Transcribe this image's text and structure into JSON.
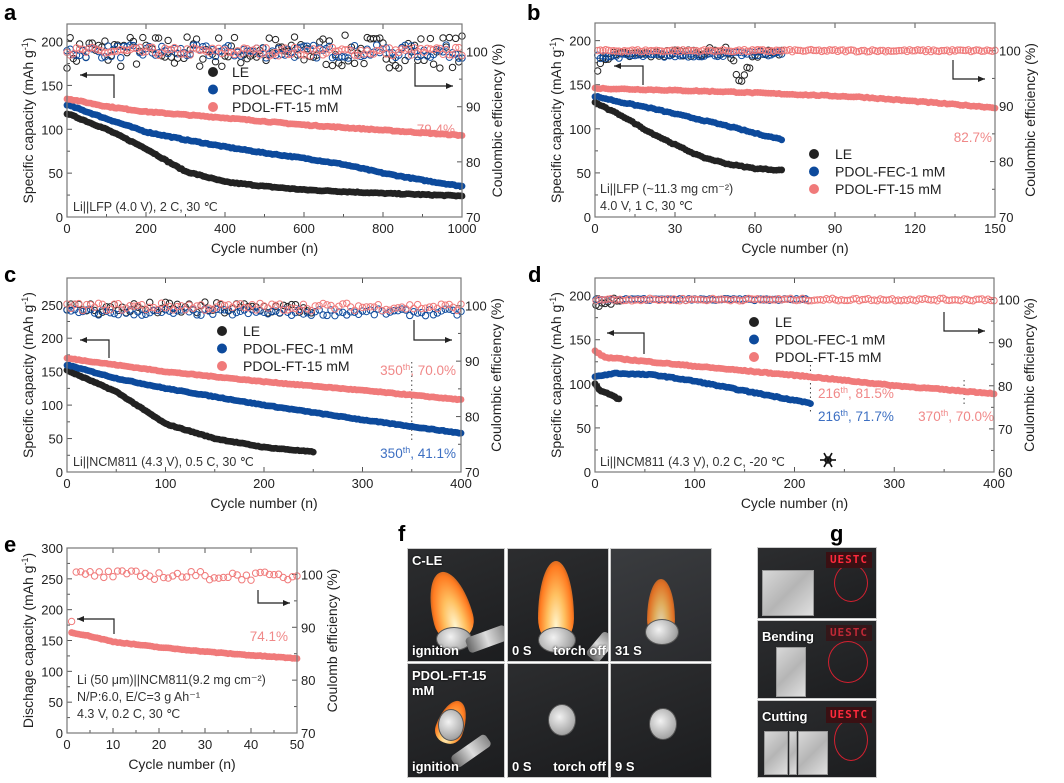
{
  "legend_names": [
    "LE",
    "PDOL-FEC-1 mM",
    "PDOL-FT-15 mM"
  ],
  "colors": {
    "LE": "#222222",
    "PDOL-FEC-1 mM": "#0d4a9c",
    "PDOL-FT-15 mM": "#f07a7a",
    "annot_pink": "#f08888",
    "annot_blue": "#3d6fc2"
  },
  "chart_data": [
    {
      "panel": "a",
      "type": "scatter",
      "xlabel": "Cycle number (n)",
      "ylabel_left": {
        "pre": "Specific capacity (mAh g",
        "sup": "-1",
        "post": ")"
      },
      "ylabel_right": "Coulombic efficiency (%)",
      "xlim": [
        0,
        1000
      ],
      "ylim_left": [
        0,
        220
      ],
      "ylim_right": [
        70,
        105
      ],
      "xticks": [
        "0",
        "200",
        "400",
        "600",
        "800",
        "1000"
      ],
      "yticks_left": [
        "0",
        "50",
        "100",
        "150",
        "200"
      ],
      "yticks_right": [
        "70",
        "80",
        "90",
        "100"
      ],
      "legend": "top-center",
      "conditions": [
        "Li||LFP (4.0 V), 2 C, 30 ℃"
      ],
      "annotations": [
        {
          "text": "79.4%",
          "color": "pink"
        }
      ],
      "series": [
        {
          "name": "LE",
          "capacity": [
            [
              0,
              118
            ],
            [
              100,
              100
            ],
            [
              200,
              78
            ],
            [
              260,
              62
            ],
            [
              300,
              52
            ],
            [
              400,
              40
            ],
            [
              500,
              35
            ],
            [
              600,
              31
            ],
            [
              800,
              27
            ],
            [
              1000,
              24
            ]
          ],
          "ce": [
            [
              0,
              100
            ],
            [
              1000,
              100
            ]
          ]
        },
        {
          "name": "PDOL-FEC-1 mM",
          "capacity": [
            [
              0,
              128
            ],
            [
              100,
              112
            ],
            [
              200,
              97
            ],
            [
              300,
              88
            ],
            [
              400,
              80
            ],
            [
              500,
              73
            ],
            [
              600,
              67
            ],
            [
              700,
              60
            ],
            [
              800,
              50
            ],
            [
              900,
              42
            ],
            [
              1000,
              35
            ]
          ],
          "ce": [
            [
              0,
              100
            ],
            [
              1000,
              100
            ]
          ]
        },
        {
          "name": "PDOL-FT-15 mM",
          "capacity": [
            [
              0,
              135
            ],
            [
              100,
              126
            ],
            [
              200,
              120
            ],
            [
              400,
              113
            ],
            [
              600,
              105
            ],
            [
              800,
              99
            ],
            [
              1000,
              93
            ]
          ],
          "ce": [
            [
              0,
              100
            ],
            [
              1000,
              100
            ]
          ]
        }
      ]
    },
    {
      "panel": "b",
      "type": "scatter",
      "xlabel": "Cycle number (n)",
      "ylabel_left": {
        "pre": "Specific capacity (mAh g",
        "sup": "-1",
        "post": ")"
      },
      "ylabel_right": "Coulombic efficiency (%)",
      "xlim": [
        0,
        150
      ],
      "ylim_left": [
        0,
        220
      ],
      "ylim_right": [
        70,
        105
      ],
      "xticks": [
        "0",
        "30",
        "60",
        "90",
        "120",
        "150"
      ],
      "yticks_left": [
        "0",
        "50",
        "100",
        "150",
        "200"
      ],
      "yticks_right": [
        "70",
        "80",
        "90",
        "100"
      ],
      "legend": "bottom-right",
      "conditions": [
        "Li||LFP (~11.3 mg cm⁻²)",
        "4.0 V, 1 C, 30 ℃"
      ],
      "annotations": [
        {
          "text": "82.7%",
          "color": "pink"
        }
      ],
      "series": [
        {
          "name": "LE",
          "capacity": [
            [
              0,
              130
            ],
            [
              5,
              122
            ],
            [
              10,
              115
            ],
            [
              20,
              97
            ],
            [
              30,
              82
            ],
            [
              40,
              68
            ],
            [
              50,
              60
            ],
            [
              60,
              55
            ],
            [
              70,
              53
            ]
          ],
          "ce": [
            [
              1,
              96
            ],
            [
              3,
              99
            ],
            [
              50,
              100
            ],
            [
              52,
              98
            ],
            [
              54,
              94
            ],
            [
              56,
              96
            ],
            [
              58,
              97
            ],
            [
              60,
              99.5
            ],
            [
              70,
              99.5
            ]
          ]
        },
        {
          "name": "PDOL-FEC-1 mM",
          "capacity": [
            [
              0,
              137
            ],
            [
              10,
              130
            ],
            [
              20,
              124
            ],
            [
              30,
              117
            ],
            [
              40,
              110
            ],
            [
              50,
              103
            ],
            [
              60,
              95
            ],
            [
              70,
              88
            ]
          ],
          "ce": [
            [
              1,
              99
            ],
            [
              70,
              99.5
            ]
          ]
        },
        {
          "name": "PDOL-FT-15 mM",
          "capacity": [
            [
              0,
              146
            ],
            [
              50,
              142
            ],
            [
              100,
              136
            ],
            [
              150,
              124
            ]
          ],
          "ce": [
            [
              1,
              100
            ],
            [
              150,
              100
            ]
          ]
        }
      ]
    },
    {
      "panel": "c",
      "type": "scatter",
      "xlabel": "Cycle number (n)",
      "ylabel_left": {
        "pre": "Specific capacity (mAh g",
        "sup": "-1",
        "post": ")"
      },
      "ylabel_right": "Coulombic efficiency (%)",
      "xlim": [
        0,
        400
      ],
      "ylim_left": [
        0,
        290
      ],
      "ylim_right": [
        70,
        105
      ],
      "xticks": [
        "0",
        "100",
        "200",
        "300",
        "400"
      ],
      "yticks_left": [
        "0",
        "50",
        "100",
        "150",
        "200",
        "250"
      ],
      "yticks_right": [
        "70",
        "80",
        "90",
        "100"
      ],
      "legend": "top-center",
      "conditions": [
        "Li||NCM811 (4.3 V), 0.5 C, 30 ℃"
      ],
      "annotations": [
        {
          "n": "350",
          "sup": "th",
          "text": ", 70.0%",
          "color": "pink"
        },
        {
          "n": "350",
          "sup": "th",
          "text": ", 41.1%",
          "color": "blue"
        }
      ],
      "series": [
        {
          "name": "LE",
          "capacity": [
            [
              0,
              152
            ],
            [
              50,
              120
            ],
            [
              100,
              72
            ],
            [
              150,
              50
            ],
            [
              200,
              37
            ],
            [
              250,
              30
            ]
          ],
          "ce": [
            [
              0,
              99.5
            ],
            [
              250,
              99.5
            ]
          ]
        },
        {
          "name": "PDOL-FEC-1 mM",
          "capacity": [
            [
              0,
              160
            ],
            [
              50,
              140
            ],
            [
              100,
              125
            ],
            [
              200,
              100
            ],
            [
              300,
              78
            ],
            [
              400,
              58
            ]
          ],
          "ce": [
            [
              0,
              98.8
            ],
            [
              400,
              98.8
            ]
          ]
        },
        {
          "name": "PDOL-FT-15 mM",
          "capacity": [
            [
              0,
              170
            ],
            [
              100,
              150
            ],
            [
              200,
              135
            ],
            [
              300,
              122
            ],
            [
              400,
              108
            ]
          ],
          "ce": [
            [
              0,
              99.8
            ],
            [
              400,
              99.8
            ]
          ]
        }
      ]
    },
    {
      "panel": "d",
      "type": "scatter",
      "xlabel": "Cycle number (n)",
      "ylabel_left": {
        "pre": "Specific capacity (mAh g",
        "sup": "-1",
        "post": ")"
      },
      "ylabel_right": "Coulombic efficiency (%)",
      "xlim": [
        0,
        400
      ],
      "ylim_left": [
        0,
        220
      ],
      "ylim_right": [
        60,
        105
      ],
      "xticks": [
        "0",
        "100",
        "200",
        "300",
        "400"
      ],
      "yticks_left": [
        "0",
        "50",
        "100",
        "150",
        "200"
      ],
      "yticks_right": [
        "60",
        "70",
        "80",
        "90",
        "100"
      ],
      "legend": "center",
      "conditions": [
        "Li||NCM811 (4.3 V), 0.2 C, -20 ℃"
      ],
      "annotations": [
        {
          "n": "216",
          "sup": "th",
          "text": ", 81.5%",
          "color": "pink"
        },
        {
          "n": "216",
          "sup": "th",
          "text": ", 71.7%",
          "color": "blue"
        },
        {
          "n": "370",
          "sup": "th",
          "text": ", 70.0%",
          "color": "pink"
        }
      ],
      "series": [
        {
          "name": "LE",
          "capacity": [
            [
              0,
              100
            ],
            [
              5,
              92
            ],
            [
              15,
              88
            ],
            [
              25,
              82
            ]
          ],
          "ce": [
            [
              1,
              98
            ],
            [
              25,
              100
            ]
          ]
        },
        {
          "name": "PDOL-FEC-1 mM",
          "capacity": [
            [
              0,
              108
            ],
            [
              20,
              112
            ],
            [
              60,
              110
            ],
            [
              100,
              103
            ],
            [
              150,
              92
            ],
            [
              216,
              78
            ]
          ],
          "ce": [
            [
              1,
              100
            ],
            [
              216,
              100
            ]
          ]
        },
        {
          "name": "PDOL-FT-15 mM",
          "capacity": [
            [
              0,
              137
            ],
            [
              10,
              130
            ],
            [
              100,
              120
            ],
            [
              216,
              108
            ],
            [
              300,
              98
            ],
            [
              400,
              89
            ]
          ],
          "ce": [
            [
              1,
              100
            ],
            [
              400,
              100
            ]
          ]
        }
      ]
    },
    {
      "panel": "e",
      "type": "scatter",
      "xlabel": "Cycle number (n)",
      "ylabel_left": {
        "pre": "Dischage capacity (mAh g",
        "sup": "-1",
        "post": ")"
      },
      "ylabel_right": "Coulomb efficiency (%)",
      "xlim": [
        0,
        50
      ],
      "ylim_left": [
        0,
        300
      ],
      "ylim_right": [
        70,
        105
      ],
      "xticks": [
        "0",
        "10",
        "20",
        "30",
        "40",
        "50"
      ],
      "yticks_left": [
        "0",
        "50",
        "100",
        "150",
        "200",
        "250",
        "300"
      ],
      "yticks_right": [
        "70",
        "80",
        "90",
        "100"
      ],
      "legend": "none",
      "conditions": [
        "Li (50 μm)||NCM811(9.2 mg cm⁻²)",
        "N/P:6.0, E/C=3 g Ah⁻¹",
        "4.3 V, 0.2 C, 30 ℃"
      ],
      "annotations": [
        {
          "text": "74.1%",
          "color": "pink"
        }
      ],
      "series": [
        {
          "name": "PDOL-FT-15 mM",
          "capacity": [
            [
              1,
              163
            ],
            [
              5,
              157
            ],
            [
              10,
              148
            ],
            [
              20,
              139
            ],
            [
              30,
              132
            ],
            [
              40,
              126
            ],
            [
              50,
              121
            ]
          ],
          "ce": [
            [
              1,
              90.5
            ],
            [
              2,
              100
            ],
            [
              50,
              99.6
            ]
          ]
        }
      ]
    }
  ],
  "panel_f": {
    "label": "f",
    "rows": [
      {
        "name": "C-LE",
        "frames": [
          "ignition",
          "0 S",
          "torch off",
          "31 S"
        ]
      },
      {
        "name": "PDOL-FT-15 mM",
        "frames": [
          "ignition",
          "0 S",
          "torch off",
          "9 S"
        ]
      }
    ]
  },
  "panel_g": {
    "label": "g",
    "rows": [
      "",
      "Bending",
      "Cutting"
    ],
    "led_text": "UESTC"
  }
}
